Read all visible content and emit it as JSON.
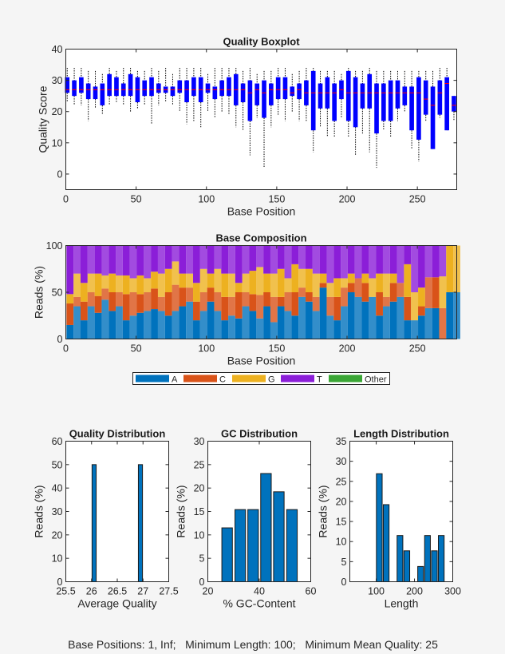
{
  "colors": {
    "A": "#0072BD",
    "C": "#D95319",
    "G": "#EDB120",
    "T": "#8B1ED8",
    "Other": "#3AA635",
    "box": "#0000FF",
    "median": "#FF0000",
    "whisker": "#000000",
    "hist": "#0072BD"
  },
  "footer": "Base Positions: 1, Inf;   Minimum Length: 100;   Minimum Mean Quality: 25",
  "chart_data": [
    {
      "id": "boxplot",
      "type": "boxplot",
      "title": "Quality Boxplot",
      "xlabel": "Base Position",
      "ylabel": "Quality Score",
      "xlim": [
        0,
        278
      ],
      "ylim": [
        -5,
        40
      ],
      "xticks": [
        0,
        50,
        100,
        150,
        200,
        250
      ],
      "yticks": [
        0,
        10,
        20,
        30,
        40
      ],
      "grid": false,
      "fields": [
        "position",
        "whisker_low",
        "q1",
        "median",
        "q3",
        "whisker_high"
      ],
      "boxes": [
        [
          1,
          23,
          26,
          27,
          31,
          34
        ],
        [
          6,
          22,
          25,
          27,
          30,
          34
        ],
        [
          11,
          22,
          26,
          27,
          31,
          34
        ],
        [
          16,
          17,
          24,
          27,
          29,
          33
        ],
        [
          21,
          21,
          24,
          27,
          28,
          33
        ],
        [
          26,
          19,
          22,
          27,
          29,
          32
        ],
        [
          31,
          22,
          25,
          27,
          32,
          34
        ],
        [
          36,
          23,
          25,
          27,
          31,
          33
        ],
        [
          41,
          22,
          25,
          27,
          29,
          34
        ],
        [
          46,
          20,
          25,
          27,
          32,
          34
        ],
        [
          51,
          21,
          23,
          27,
          31,
          33
        ],
        [
          56,
          22,
          25,
          27,
          30,
          33
        ],
        [
          61,
          16,
          25,
          27,
          31,
          34
        ],
        [
          66,
          22,
          26,
          27,
          29,
          33
        ],
        [
          71,
          23,
          26,
          27,
          28,
          34
        ],
        [
          76,
          22,
          25,
          27,
          28,
          32
        ],
        [
          81,
          20,
          26,
          27,
          30,
          34
        ],
        [
          86,
          16,
          23,
          27,
          30,
          34
        ],
        [
          91,
          17,
          25,
          27,
          31,
          34
        ],
        [
          96,
          15,
          23,
          27,
          31,
          34
        ],
        [
          101,
          20,
          26,
          27,
          29,
          32
        ],
        [
          106,
          18,
          24,
          27,
          28,
          34
        ],
        [
          111,
          20,
          25,
          27,
          30,
          34
        ],
        [
          116,
          19,
          25,
          27,
          31,
          34
        ],
        [
          121,
          15,
          22,
          27,
          32,
          34
        ],
        [
          126,
          14,
          23,
          27,
          29,
          33
        ],
        [
          131,
          6,
          17,
          26,
          30,
          34
        ],
        [
          136,
          18,
          22,
          27,
          29,
          32
        ],
        [
          141,
          2,
          18,
          26,
          30,
          33
        ],
        [
          146,
          15,
          22,
          27,
          29,
          33
        ],
        [
          151,
          19,
          24,
          27,
          31,
          34
        ],
        [
          156,
          17,
          24,
          27,
          31,
          34
        ],
        [
          161,
          20,
          25,
          26,
          28,
          32
        ],
        [
          166,
          17,
          24,
          27,
          29,
          33
        ],
        [
          171,
          17,
          22,
          26,
          30,
          34
        ],
        [
          176,
          7,
          14,
          26,
          33,
          34
        ],
        [
          181,
          15,
          21,
          26,
          29,
          33
        ],
        [
          186,
          12,
          21,
          26,
          31,
          33
        ],
        [
          191,
          12,
          17,
          26,
          29,
          33
        ],
        [
          196,
          18,
          24,
          27,
          30,
          32
        ],
        [
          201,
          12,
          17,
          26,
          33,
          34
        ],
        [
          206,
          6,
          15,
          26,
          31,
          33
        ],
        [
          211,
          13,
          21,
          26,
          29,
          33
        ],
        [
          216,
          7,
          21,
          26,
          32,
          34
        ],
        [
          221,
          2,
          13,
          26,
          29,
          33
        ],
        [
          226,
          14,
          17,
          26,
          29,
          33
        ],
        [
          231,
          12,
          17,
          26,
          30,
          33
        ],
        [
          236,
          17,
          21,
          26,
          30,
          33
        ],
        [
          241,
          20,
          22,
          26,
          28,
          33
        ],
        [
          246,
          8,
          14,
          26,
          28,
          33
        ],
        [
          251,
          4,
          11,
          26,
          31,
          33
        ],
        [
          256,
          17,
          19,
          24,
          30,
          33
        ],
        [
          261,
          8,
          8,
          22,
          28,
          33
        ],
        [
          266,
          18,
          19,
          26,
          30,
          34
        ],
        [
          271,
          14,
          14,
          29,
          31,
          34
        ],
        [
          276,
          17,
          20,
          22,
          25,
          25
        ]
      ]
    },
    {
      "id": "composition",
      "type": "bar",
      "stacked": true,
      "title": "Base Composition",
      "xlabel": "Base Position",
      "ylabel": "Reads (%)",
      "xlim": [
        0,
        278
      ],
      "ylim": [
        0,
        100
      ],
      "xticks": [
        0,
        50,
        100,
        150,
        200,
        250
      ],
      "yticks": [
        0,
        50,
        100
      ],
      "legend": {
        "position": "bottom",
        "entries": [
          "A",
          "C",
          "G",
          "T",
          "Other"
        ]
      },
      "fields": [
        "position",
        "A",
        "C",
        "G",
        "T"
      ],
      "bars": [
        [
          1,
          15,
          23,
          10,
          52
        ],
        [
          6,
          35,
          10,
          25,
          30
        ],
        [
          11,
          20,
          20,
          20,
          40
        ],
        [
          16,
          35,
          15,
          20,
          30
        ],
        [
          21,
          28,
          18,
          24,
          30
        ],
        [
          26,
          42,
          12,
          14,
          32
        ],
        [
          31,
          30,
          20,
          20,
          30
        ],
        [
          36,
          35,
          15,
          18,
          32
        ],
        [
          41,
          20,
          28,
          20,
          32
        ],
        [
          46,
          25,
          25,
          15,
          35
        ],
        [
          51,
          28,
          20,
          20,
          32
        ],
        [
          56,
          30,
          20,
          15,
          35
        ],
        [
          61,
          32,
          22,
          18,
          28
        ],
        [
          66,
          30,
          15,
          25,
          30
        ],
        [
          71,
          25,
          25,
          25,
          25
        ],
        [
          76,
          30,
          28,
          25,
          17
        ],
        [
          81,
          35,
          20,
          15,
          30
        ],
        [
          86,
          40,
          15,
          15,
          30
        ],
        [
          91,
          20,
          20,
          20,
          40
        ],
        [
          96,
          30,
          20,
          25,
          25
        ],
        [
          101,
          40,
          15,
          15,
          30
        ],
        [
          106,
          30,
          20,
          25,
          25
        ],
        [
          111,
          20,
          25,
          25,
          30
        ],
        [
          116,
          25,
          20,
          25,
          30
        ],
        [
          121,
          22,
          28,
          10,
          40
        ],
        [
          126,
          35,
          15,
          20,
          30
        ],
        [
          131,
          30,
          18,
          25,
          27
        ],
        [
          136,
          22,
          25,
          30,
          23
        ],
        [
          141,
          35,
          15,
          20,
          30
        ],
        [
          146,
          18,
          27,
          25,
          30
        ],
        [
          151,
          35,
          10,
          30,
          25
        ],
        [
          156,
          30,
          20,
          15,
          35
        ],
        [
          161,
          25,
          25,
          30,
          20
        ],
        [
          166,
          45,
          10,
          20,
          25
        ],
        [
          171,
          40,
          10,
          25,
          25
        ],
        [
          176,
          30,
          15,
          25,
          30
        ],
        [
          181,
          55,
          5,
          10,
          30
        ],
        [
          186,
          25,
          20,
          15,
          40
        ],
        [
          191,
          20,
          25,
          20,
          35
        ],
        [
          196,
          35,
          20,
          10,
          35
        ],
        [
          201,
          50,
          10,
          10,
          30
        ],
        [
          206,
          45,
          20,
          0,
          35
        ],
        [
          211,
          40,
          20,
          10,
          30
        ],
        [
          216,
          45,
          0,
          20,
          35
        ],
        [
          221,
          25,
          25,
          20,
          30
        ],
        [
          226,
          35,
          10,
          25,
          30
        ],
        [
          231,
          40,
          20,
          10,
          30
        ],
        [
          236,
          45,
          15,
          0,
          40
        ],
        [
          241,
          20,
          25,
          35,
          20
        ],
        [
          246,
          20,
          0,
          30,
          50
        ],
        [
          251,
          25,
          10,
          20,
          45
        ],
        [
          256,
          33,
          33,
          0,
          34
        ],
        [
          261,
          33,
          33,
          0,
          34
        ],
        [
          266,
          0,
          33,
          34,
          33
        ],
        [
          271,
          50,
          0,
          50,
          0
        ],
        [
          276,
          50,
          0,
          50,
          0
        ]
      ]
    },
    {
      "id": "quality-dist",
      "type": "bar",
      "title": "Quality Distribution",
      "xlabel": "Average Quality",
      "ylabel": "Reads (%)",
      "xlim": [
        25.5,
        27.5
      ],
      "ylim": [
        0,
        60
      ],
      "xticks": [
        25.5,
        26,
        26.5,
        27,
        27.5
      ],
      "yticks": [
        0,
        10,
        20,
        30,
        40,
        50,
        60
      ],
      "bar_width": 0.08,
      "x": [
        26.05,
        26.95
      ],
      "values": [
        50,
        50
      ]
    },
    {
      "id": "gc-dist",
      "type": "bar",
      "title": "GC Distribution",
      "xlabel": "% GC-Content",
      "ylabel": "Reads (%)",
      "xlim": [
        20,
        60
      ],
      "ylim": [
        0,
        30
      ],
      "xticks": [
        20,
        40,
        60
      ],
      "yticks": [
        0,
        5,
        10,
        15,
        20,
        25,
        30
      ],
      "bar_width": 4.1,
      "x": [
        27.5,
        32.6,
        37.6,
        42.6,
        47.6,
        52.7
      ],
      "values": [
        11.5,
        15.4,
        15.4,
        23.1,
        19.2,
        15.4
      ]
    },
    {
      "id": "length-dist",
      "type": "bar",
      "title": "Length Distribution",
      "xlabel": "Length",
      "ylabel": "Reads (%)",
      "xlim": [
        31,
        300
      ],
      "ylim": [
        0,
        35
      ],
      "xticks": [
        100,
        200,
        300
      ],
      "yticks": [
        0,
        5,
        10,
        15,
        20,
        25,
        30,
        35
      ],
      "bar_width": 15,
      "x": [
        108,
        126,
        162,
        180,
        216,
        234,
        252,
        270
      ],
      "values": [
        26.9,
        19.2,
        11.5,
        7.7,
        3.8,
        11.5,
        7.7,
        11.5
      ]
    }
  ]
}
